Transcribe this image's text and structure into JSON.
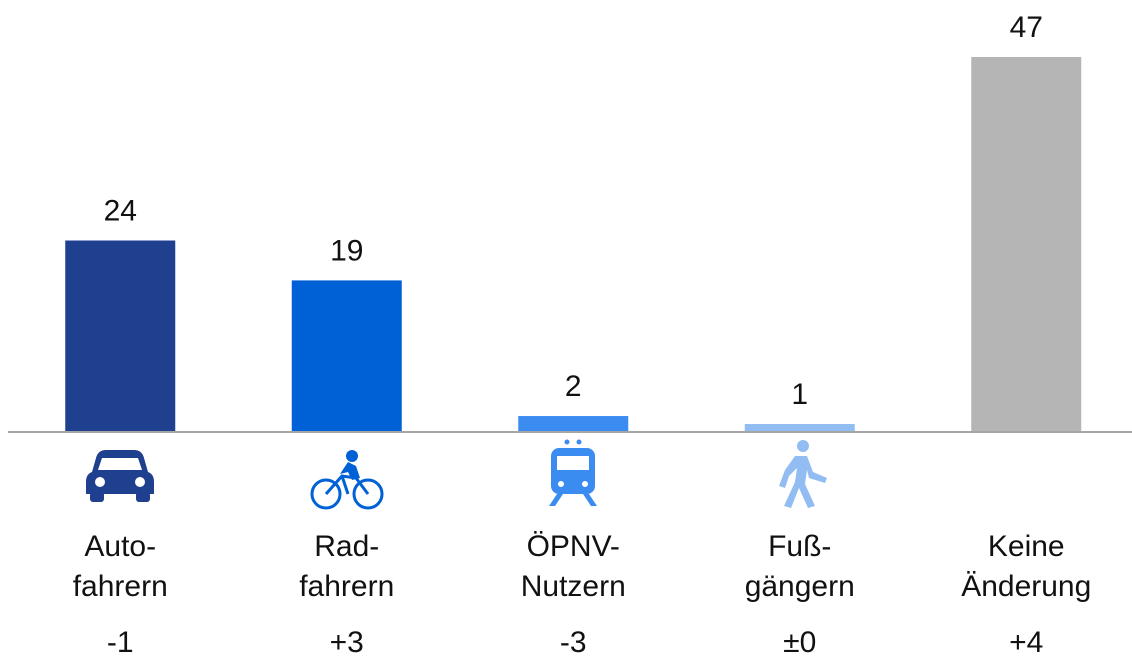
{
  "chart_data": {
    "type": "bar",
    "categories": [
      [
        "Auto-",
        "fahrern"
      ],
      [
        "Rad-",
        "fahrern"
      ],
      [
        "ÖPNV-",
        "Nutzern"
      ],
      [
        "Fuß-",
        "gängern"
      ],
      [
        "Keine",
        "Änderung"
      ]
    ],
    "values": [
      24,
      19,
      2,
      1,
      47
    ],
    "colors": [
      "#1f3f8f",
      "#0061d6",
      "#3b8cf0",
      "#92bdf2",
      "#b5b5b5"
    ],
    "changes": [
      "-1",
      "+3",
      "-3",
      "±0",
      "+4"
    ],
    "ylim": [
      0,
      47
    ]
  }
}
